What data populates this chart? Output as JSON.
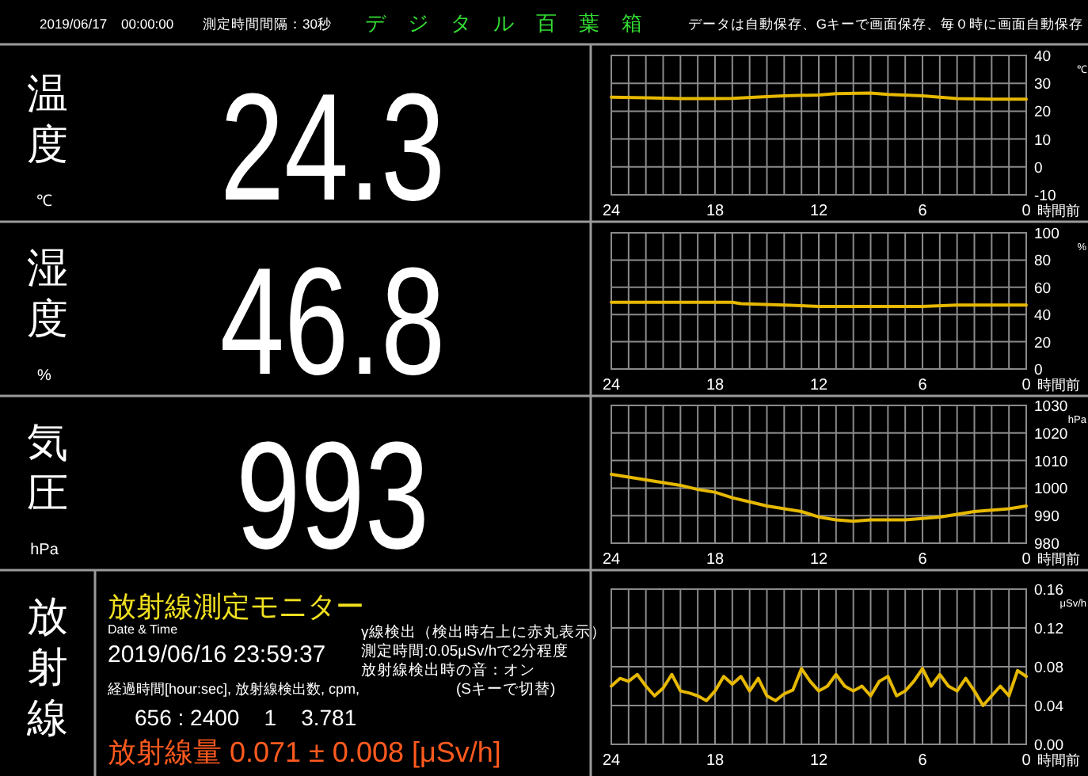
{
  "chart_data": [
    {
      "type": "other",
      "title": "デジタル百葉箱",
      "annotations": [
        "2019/06/17　00:00:00",
        "測定時間間隔：30秒",
        "データは自動保存、Gキーで画面保存、毎０時に画面自動保存"
      ]
    },
    {
      "type": "other",
      "title": "温度",
      "annotations": [
        "24.3",
        "℃"
      ]
    },
    {
      "type": "line",
      "xlabel": "時間前",
      "ylabel": "℃",
      "xlim": [
        24,
        0
      ],
      "ylim": [
        -10,
        40
      ],
      "yticks": [
        -10,
        0,
        10,
        20,
        30,
        40
      ],
      "grid": true,
      "xticks": [
        24,
        {
          "value": 23,
          "label": null
        },
        {
          "value": 22,
          "label": null
        },
        {
          "value": 21,
          "label": null
        },
        {
          "value": 20,
          "label": null
        },
        {
          "value": 19,
          "label": null
        },
        18,
        {
          "value": 17,
          "label": null
        },
        {
          "value": 16,
          "label": null
        },
        {
          "value": 15,
          "label": null
        },
        {
          "value": 14,
          "label": null
        },
        {
          "value": 13,
          "label": null
        },
        12,
        {
          "value": 11,
          "label": null
        },
        {
          "value": 10,
          "label": null
        },
        {
          "value": 9,
          "label": null
        },
        {
          "value": 8,
          "label": null
        },
        {
          "value": 7,
          "label": null
        },
        6,
        {
          "value": 5,
          "label": null
        },
        {
          "value": 4,
          "label": null
        },
        {
          "value": 3,
          "label": null
        },
        {
          "value": 2,
          "label": null
        },
        {
          "value": 1,
          "label": null
        },
        0
      ],
      "x": [
        24,
        22,
        20,
        18,
        17,
        15,
        14,
        12,
        11,
        9,
        8,
        6,
        5,
        4,
        2,
        0
      ],
      "series": [
        {
          "color": "#e6b800",
          "values": [
            25,
            24.8,
            24.5,
            24.5,
            24.6,
            25.2,
            25.5,
            25.8,
            26.3,
            26.5,
            26,
            25.5,
            25,
            24.5,
            24.3,
            24.3
          ]
        }
      ]
    },
    {
      "type": "other",
      "title": "湿度",
      "annotations": [
        "46.8",
        "%"
      ]
    },
    {
      "type": "line",
      "xlabel": "時間前",
      "ylabel": "%",
      "xlim": [
        24,
        0
      ],
      "ylim": [
        0,
        100
      ],
      "yticks": [
        0,
        20,
        40,
        60,
        80,
        100
      ],
      "grid": true,
      "xticks": [
        24,
        {
          "value": 23,
          "label": null
        },
        {
          "value": 22,
          "label": null
        },
        {
          "value": 21,
          "label": null
        },
        {
          "value": 20,
          "label": null
        },
        {
          "value": 19,
          "label": null
        },
        18,
        {
          "value": 17,
          "label": null
        },
        {
          "value": 16,
          "label": null
        },
        {
          "value": 15,
          "label": null
        },
        {
          "value": 14,
          "label": null
        },
        {
          "value": 13,
          "label": null
        },
        12,
        {
          "value": 11,
          "label": null
        },
        {
          "value": 10,
          "label": null
        },
        {
          "value": 9,
          "label": null
        },
        {
          "value": 8,
          "label": null
        },
        {
          "value": 7,
          "label": null
        },
        6,
        {
          "value": 5,
          "label": null
        },
        {
          "value": 4,
          "label": null
        },
        {
          "value": 3,
          "label": null
        },
        {
          "value": 2,
          "label": null
        },
        {
          "value": 1,
          "label": null
        },
        0
      ],
      "x": [
        24,
        20,
        17,
        16.5,
        14,
        12,
        10,
        8,
        6,
        4,
        2,
        0
      ],
      "series": [
        {
          "color": "#e6b800",
          "values": [
            49,
            49,
            49,
            48,
            47,
            46,
            46,
            46,
            46,
            47,
            47,
            47
          ]
        }
      ]
    },
    {
      "type": "other",
      "title": "気圧",
      "annotations": [
        "993",
        "hPa"
      ]
    },
    {
      "type": "line",
      "xlabel": "時間前",
      "ylabel": "hPa",
      "xlim": [
        24,
        0
      ],
      "ylim": [
        980,
        1030
      ],
      "yticks": [
        980,
        990,
        1000,
        1010,
        1020,
        1030
      ],
      "grid": true,
      "xticks": [
        24,
        {
          "value": 23,
          "label": null
        },
        {
          "value": 22,
          "label": null
        },
        {
          "value": 21,
          "label": null
        },
        {
          "value": 20,
          "label": null
        },
        {
          "value": 19,
          "label": null
        },
        18,
        {
          "value": 17,
          "label": null
        },
        {
          "value": 16,
          "label": null
        },
        {
          "value": 15,
          "label": null
        },
        {
          "value": 14,
          "label": null
        },
        {
          "value": 13,
          "label": null
        },
        12,
        {
          "value": 11,
          "label": null
        },
        {
          "value": 10,
          "label": null
        },
        {
          "value": 9,
          "label": null
        },
        {
          "value": 8,
          "label": null
        },
        {
          "value": 7,
          "label": null
        },
        6,
        {
          "value": 5,
          "label": null
        },
        {
          "value": 4,
          "label": null
        },
        {
          "value": 3,
          "label": null
        },
        {
          "value": 2,
          "label": null
        },
        {
          "value": 1,
          "label": null
        },
        0
      ],
      "x": [
        24,
        23,
        21,
        20,
        19,
        18,
        17,
        16,
        15,
        14,
        13,
        12,
        11,
        10,
        9,
        8,
        7,
        6,
        5,
        4,
        3,
        2,
        1,
        0
      ],
      "series": [
        {
          "color": "#e6b800",
          "values": [
            1005,
            1004,
            1002,
            1001,
            999.5,
            998.5,
            996.5,
            995,
            993.5,
            992.5,
            991.5,
            989.5,
            988.5,
            988,
            988.5,
            988.5,
            988.5,
            989,
            989.5,
            990.5,
            991.5,
            992,
            992.5,
            993.5
          ]
        }
      ]
    },
    {
      "type": "other",
      "title": "放射線",
      "annotations": [
        "放射線測定モニター",
        "Date & Time",
        "2019/06/16 23:59:37",
        "γ線検出（検出時右上に赤丸表示）",
        "測定時間:0.05μSv/hで2分程度",
        "放射線検出時の音：オン",
        "(Sキーで切替)",
        "経過時間[hour:sec], 放射線検出数, cpm,",
        "656 : 2400    1    3.781",
        "放射線量 0.071 ± 0.008 [μSv/h]"
      ]
    },
    {
      "type": "line",
      "xlabel": "時間前",
      "ylabel": "μSv/h",
      "xlim": [
        24,
        0
      ],
      "ylim": [
        0,
        0.16
      ],
      "yticks": [
        {
          "value": 0,
          "label": "0.00"
        },
        {
          "value": 0.04,
          "label": "0.04"
        },
        {
          "value": 0.08,
          "label": "0.08"
        },
        {
          "value": 0.12,
          "label": "0.12"
        },
        {
          "value": 0.16,
          "label": "0.16"
        }
      ],
      "grid": true,
      "xticks": [
        24,
        {
          "value": 23,
          "label": null
        },
        {
          "value": 22,
          "label": null
        },
        {
          "value": 21,
          "label": null
        },
        {
          "value": 20,
          "label": null
        },
        {
          "value": 19,
          "label": null
        },
        18,
        {
          "value": 17,
          "label": null
        },
        {
          "value": 16,
          "label": null
        },
        {
          "value": 15,
          "label": null
        },
        {
          "value": 14,
          "label": null
        },
        {
          "value": 13,
          "label": null
        },
        12,
        {
          "value": 11,
          "label": null
        },
        {
          "value": 10,
          "label": null
        },
        {
          "value": 9,
          "label": null
        },
        {
          "value": 8,
          "label": null
        },
        {
          "value": 7,
          "label": null
        },
        6,
        {
          "value": 5,
          "label": null
        },
        {
          "value": 4,
          "label": null
        },
        {
          "value": 3,
          "label": null
        },
        {
          "value": 2,
          "label": null
        },
        {
          "value": 1,
          "label": null
        },
        0
      ],
      "x": [
        24,
        23.5,
        23,
        22.5,
        22,
        21.5,
        21,
        20.5,
        20,
        19.5,
        19,
        18.5,
        18,
        17.5,
        17,
        16.5,
        16,
        15.5,
        15,
        14.5,
        14,
        13.5,
        13,
        12.5,
        12,
        11.5,
        11,
        10.5,
        10,
        9.5,
        9,
        8.5,
        8,
        7.5,
        7,
        6.5,
        6,
        5.5,
        5,
        4.5,
        4,
        3.5,
        3,
        2.5,
        2,
        1.5,
        1,
        0.5,
        0
      ],
      "series": [
        {
          "color": "#e6b800",
          "values": [
            0.06,
            0.068,
            0.065,
            0.072,
            0.06,
            0.05,
            0.058,
            0.072,
            0.055,
            0.053,
            0.05,
            0.045,
            0.055,
            0.07,
            0.062,
            0.07,
            0.055,
            0.068,
            0.05,
            0.045,
            0.052,
            0.056,
            0.078,
            0.065,
            0.055,
            0.06,
            0.072,
            0.06,
            0.055,
            0.06,
            0.05,
            0.065,
            0.07,
            0.05,
            0.055,
            0.065,
            0.078,
            0.06,
            0.072,
            0.06,
            0.055,
            0.068,
            0.055,
            0.04,
            0.05,
            0.06,
            0.05,
            0.076,
            0.07
          ]
        }
      ]
    }
  ]
}
